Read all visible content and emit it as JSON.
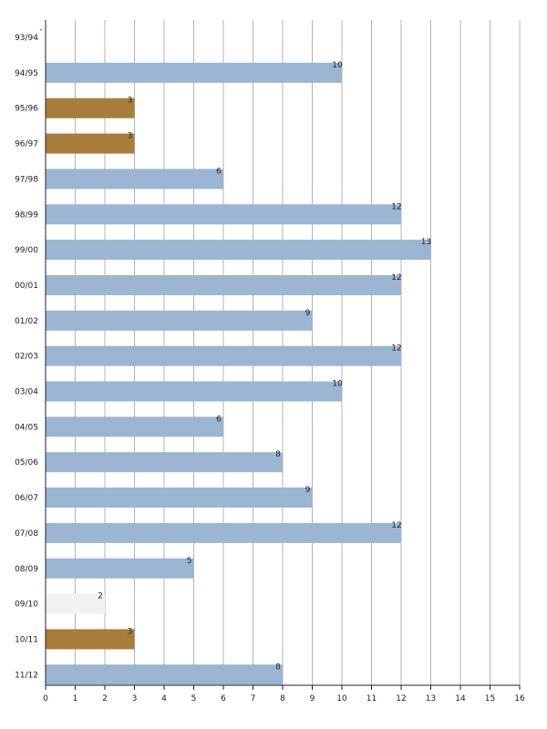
{
  "chart_data": {
    "type": "bar",
    "orientation": "horizontal",
    "categories": [
      "93/94",
      "94/95",
      "95/96",
      "96/97",
      "97/98",
      "98/99",
      "99/00",
      "00/01",
      "01/02",
      "02/03",
      "03/04",
      "04/05",
      "05/06",
      "06/07",
      "07/08",
      "08/09",
      "09/10",
      "10/11",
      "11/12"
    ],
    "values": [
      0,
      10,
      3,
      3,
      6,
      12,
      13,
      12,
      9,
      12,
      10,
      6,
      8,
      9,
      12,
      5,
      2,
      3,
      8
    ],
    "value_labels": [
      "-",
      "10",
      "3",
      "3",
      "6",
      "12",
      "13",
      "12",
      "9",
      "12",
      "10",
      "6",
      "8",
      "9",
      "12",
      "5",
      "2",
      "3",
      "8"
    ],
    "bar_colors": [
      "#9bb5d2",
      "#9bb5d2",
      "#a87d3b",
      "#a87d3b",
      "#9bb5d2",
      "#9bb5d2",
      "#9bb5d2",
      "#9bb5d2",
      "#9bb5d2",
      "#9bb5d2",
      "#9bb5d2",
      "#9bb5d2",
      "#9bb5d2",
      "#9bb5d2",
      "#9bb5d2",
      "#9bb5d2",
      "#f2f2f2",
      "#a87d3b",
      "#9bb5d2"
    ],
    "xlim": [
      0,
      16
    ],
    "x_ticks": [
      "0",
      "1",
      "2",
      "3",
      "4",
      "5",
      "6",
      "7",
      "8",
      "9",
      "10",
      "11",
      "12",
      "13",
      "14",
      "15",
      "16"
    ],
    "grid": "vertical",
    "title": "",
    "xlabel": "",
    "ylabel": ""
  }
}
